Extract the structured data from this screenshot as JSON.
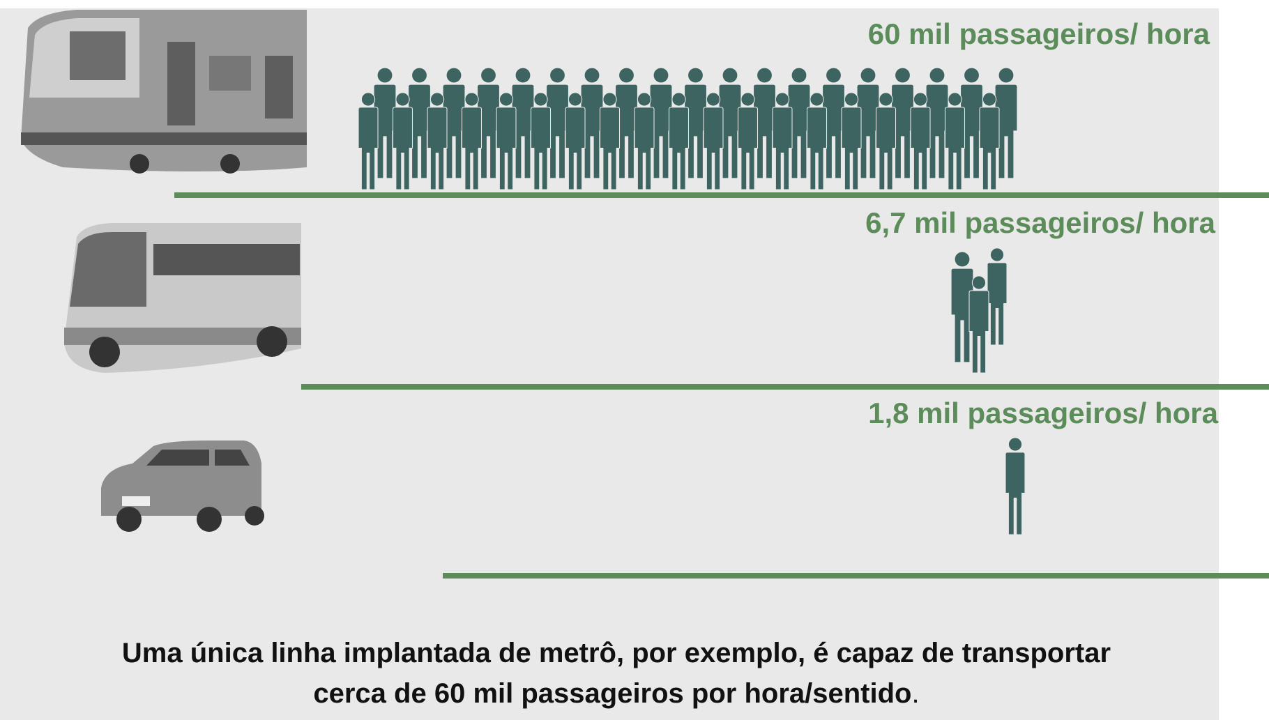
{
  "rows": [
    {
      "label": "60 mil passageiros/ hora"
    },
    {
      "label": "6,7 mil passageiros/ hora"
    },
    {
      "label": "1,8 mil passageiros/ hora"
    }
  ],
  "caption": {
    "line1": "Uma única linha implantada de metrô, por exemplo, é capaz de transportar",
    "line2": "cerca de 60 mil passageiros por hora/sentido",
    "line2_end": "."
  }
}
